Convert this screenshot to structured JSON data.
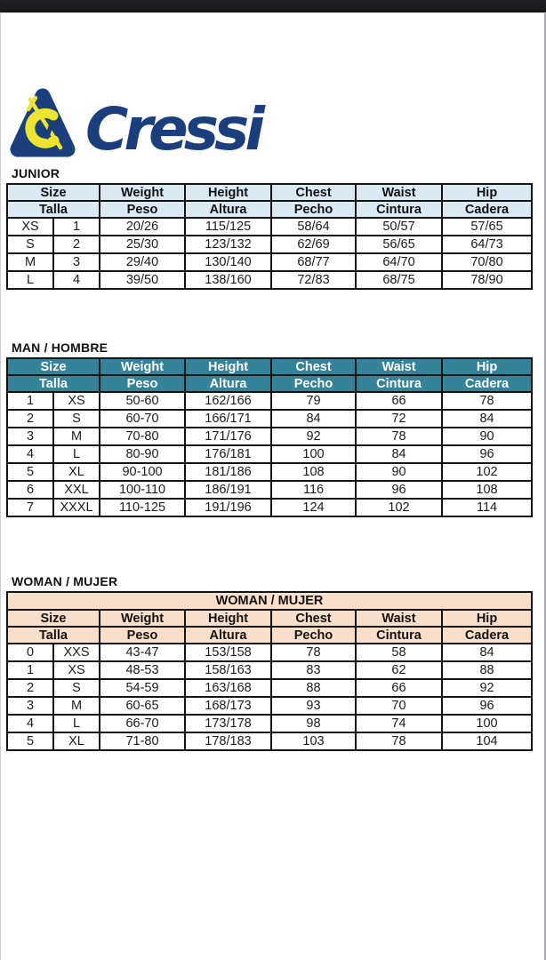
{
  "brand": {
    "wordmark": "Cressi",
    "logo_icon": "cressi-triangle-harpoon-icon",
    "logo_navy": "#1b3f7d",
    "logo_yellow": "#ece42f"
  },
  "tables": [
    {
      "id": "junior",
      "heading": "JUNIOR",
      "banner": null,
      "theme": {
        "header_bg": "#dbe9f3",
        "header_text": "#121212"
      },
      "headers_en": [
        "Size",
        "Weight",
        "Height",
        "Chest",
        "Waist",
        "Hip"
      ],
      "headers_es": [
        "Talla",
        "Peso",
        "Altura",
        "Pecho",
        "Cintura",
        "Cadera"
      ],
      "rows": [
        [
          "XS",
          "1",
          "20/26",
          "115/125",
          "58/64",
          "50/57",
          "57/65"
        ],
        [
          "S",
          "2",
          "25/30",
          "123/132",
          "62/69",
          "56/65",
          "64/73"
        ],
        [
          "M",
          "3",
          "29/40",
          "130/140",
          "68/77",
          "64/70",
          "70/80"
        ],
        [
          "L",
          "4",
          "39/50",
          "138/160",
          "72/83",
          "68/75",
          "78/90"
        ]
      ]
    },
    {
      "id": "man",
      "heading": "MAN / HOMBRE",
      "banner": null,
      "theme": {
        "header_bg": "#35839b",
        "header_text": "#ffffff"
      },
      "headers_en": [
        "Size",
        "Weight",
        "Height",
        "Chest",
        "Waist",
        "Hip"
      ],
      "headers_es": [
        "Talla",
        "Peso",
        "Altura",
        "Pecho",
        "Cintura",
        "Cadera"
      ],
      "rows": [
        [
          "1",
          "XS",
          "50-60",
          "162/166",
          "79",
          "66",
          "78"
        ],
        [
          "2",
          "S",
          "60-70",
          "166/171",
          "84",
          "72",
          "84"
        ],
        [
          "3",
          "M",
          "70-80",
          "171/176",
          "92",
          "78",
          "90"
        ],
        [
          "4",
          "L",
          "80-90",
          "176/181",
          "100",
          "84",
          "96"
        ],
        [
          "5",
          "XL",
          "90-100",
          "181/186",
          "108",
          "90",
          "102"
        ],
        [
          "6",
          "XXL",
          "100-110",
          "186/191",
          "116",
          "96",
          "108"
        ],
        [
          "7",
          "XXXL",
          "110-125",
          "191/196",
          "124",
          "102",
          "114"
        ]
      ]
    },
    {
      "id": "woman",
      "heading": "WOMAN / MUJER",
      "banner": "WOMAN / MUJER",
      "theme": {
        "header_bg": "#f8dfcb",
        "header_text": "#121212"
      },
      "headers_en": [
        "Size",
        "Weight",
        "Height",
        "Chest",
        "Waist",
        "Hip"
      ],
      "headers_es": [
        "Talla",
        "Peso",
        "Altura",
        "Pecho",
        "Cintura",
        "Cadera"
      ],
      "rows": [
        [
          "0",
          "XXS",
          "43-47",
          "153/158",
          "78",
          "58",
          "84"
        ],
        [
          "1",
          "XS",
          "48-53",
          "158/163",
          "83",
          "62",
          "88"
        ],
        [
          "2",
          "S",
          "54-59",
          "163/168",
          "88",
          "66",
          "92"
        ],
        [
          "3",
          "M",
          "60-65",
          "168/173",
          "93",
          "70",
          "96"
        ],
        [
          "4",
          "L",
          "66-70",
          "173/178",
          "98",
          "74",
          "100"
        ],
        [
          "5",
          "XL",
          "71-80",
          "178/183",
          "103",
          "78",
          "104"
        ]
      ]
    }
  ]
}
